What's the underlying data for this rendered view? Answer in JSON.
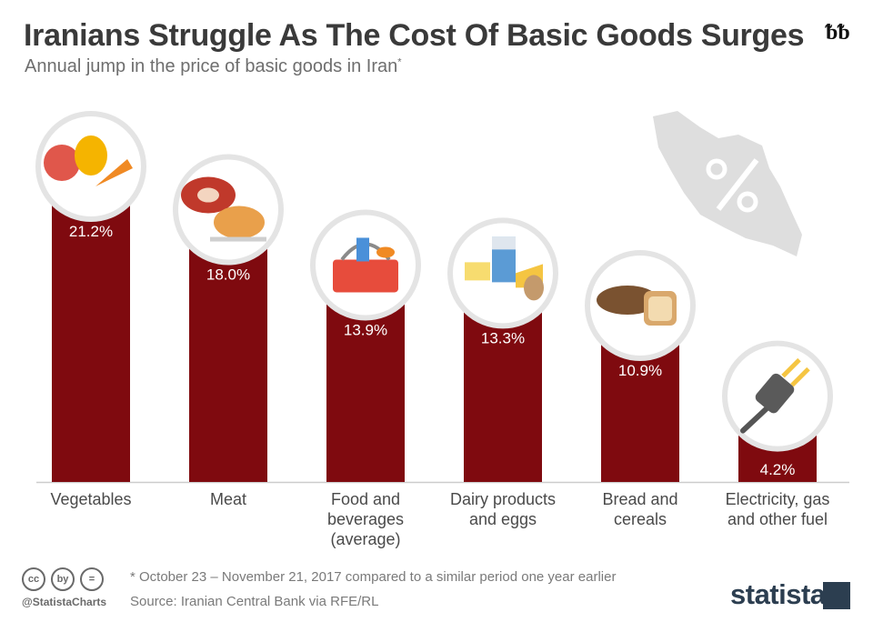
{
  "header": {
    "title": "Iranians Struggle As The Cost Of Basic Goods Surges",
    "subtitle": "Annual jump in the price of basic goods in Iran",
    "subtitle_mark": "*",
    "brand_glyph": "ᵬᵬ"
  },
  "chart_data": {
    "type": "bar",
    "categories": [
      "Vegetables",
      "Meat",
      "Food and beverages (average)",
      "Dairy products and eggs",
      "Bread and cereals",
      "Electricity, gas and other fuel"
    ],
    "category_lines": [
      [
        "Vegetables"
      ],
      [
        "Meat"
      ],
      [
        "Food and",
        "beverages",
        "(average)"
      ],
      [
        "Dairy products",
        "and eggs"
      ],
      [
        "Bread and",
        "cereals"
      ],
      [
        "Electricity, gas",
        "and other fuel"
      ]
    ],
    "values": [
      21.2,
      18.0,
      13.9,
      13.3,
      10.9,
      4.2
    ],
    "value_labels": [
      "21.2%",
      "18.0%",
      "13.9%",
      "13.3%",
      "10.9%",
      "4.2%"
    ],
    "icons": [
      "vegetables-icon",
      "meat-icon",
      "food-basket-icon",
      "dairy-icon",
      "bread-icon",
      "plug-icon"
    ],
    "bar_color": "#7f0a0f",
    "ylim": [
      0,
      24
    ]
  },
  "footer": {
    "cc_icons": [
      "cc",
      "by",
      "="
    ],
    "handle": "@StatistaCharts",
    "note": "* October 23 – November 21, 2017 compared to a similar period one year earlier",
    "source": "Source: Iranian Central Bank via RFE/RL",
    "brand": "statista"
  }
}
